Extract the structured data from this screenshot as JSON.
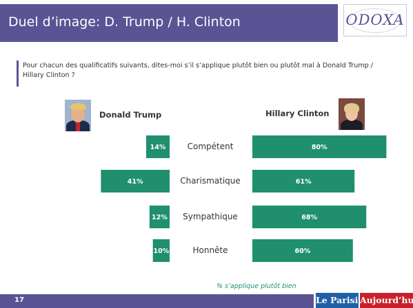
{
  "header": {
    "title": "Duel d’image: D. Trump / H. Clinton",
    "logo": "ODOXA"
  },
  "question": "Pour chacun des qualificatifs suivants, dites-moi s’il s’applique plutôt bien ou plutôt mal à Donald Trump / Hillary Clinton ?",
  "candidates": {
    "left": "Donald Trump",
    "right": "Hillary Clinton"
  },
  "chart_data": {
    "type": "bar",
    "orientation": "horizontal-diverging",
    "categories": [
      "Compétent",
      "Charismatique",
      "Sympathique",
      "Honnête"
    ],
    "series": [
      {
        "name": "Donald Trump",
        "values": [
          14,
          41,
          12,
          10
        ],
        "color": "#1f8f6e"
      },
      {
        "name": "Hillary Clinton",
        "values": [
          80,
          61,
          68,
          60
        ],
        "color": "#1f8f6e"
      }
    ],
    "unit": "%",
    "value_labels": {
      "left": [
        "14%",
        "41%",
        "12%",
        "10%"
      ],
      "right": [
        "80%",
        "61%",
        "68%",
        "60%"
      ]
    },
    "note": "% s’applique plutôt bien",
    "grid": false,
    "legend": "none"
  },
  "footer": {
    "page": "17",
    "partner_1": "Le Parisien",
    "partner_2": "Aujourd’hui"
  },
  "colors": {
    "brand": "#5a5394",
    "bar": "#1f8f6e",
    "note": "#1f8f7a"
  }
}
